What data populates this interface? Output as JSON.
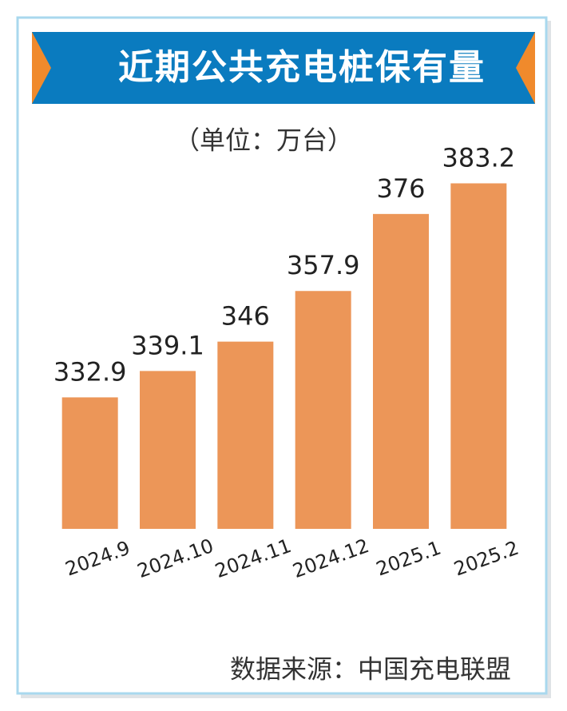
{
  "chart_data": {
    "type": "bar",
    "title": "近期公共充电桩保有量",
    "subtitle": "（单位：万台）",
    "source": "数据来源：中国充电联盟",
    "categories": [
      "2024.9",
      "2024.10",
      "2024.11",
      "2024.12",
      "2025.1",
      "2025.2"
    ],
    "values": [
      332.9,
      339.1,
      346,
      357.9,
      376,
      383.2
    ],
    "color": "#ec9658",
    "ylim": [
      302,
      400
    ]
  }
}
